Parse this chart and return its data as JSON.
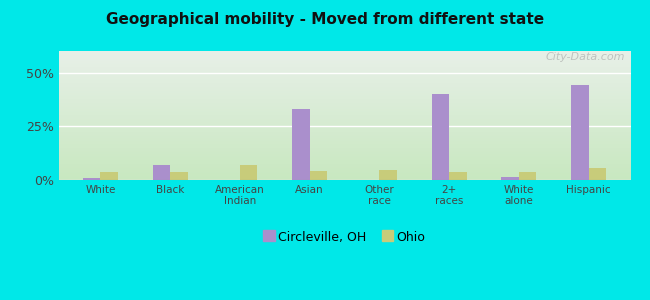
{
  "title": "Geographical mobility - Moved from different state",
  "categories": [
    "White",
    "Black",
    "American\nIndian",
    "Asian",
    "Other\nrace",
    "2+\nraces",
    "White\nalone",
    "Hispanic"
  ],
  "circleville_values": [
    1.0,
    7.0,
    0.0,
    33.0,
    0.0,
    40.0,
    1.5,
    44.0
  ],
  "ohio_values": [
    3.5,
    3.5,
    7.0,
    4.0,
    4.5,
    3.5,
    3.5,
    5.5
  ],
  "circleville_color": "#aa8fcc",
  "ohio_color": "#c8cc7a",
  "background_outer": "#00e8e8",
  "background_inner_top": "#e8f0e8",
  "background_inner_bottom": "#c8e8c0",
  "grid_color": "#d8e8d0",
  "ylim": [
    0,
    60
  ],
  "yticks": [
    0,
    25,
    50
  ],
  "ytick_labels": [
    "0%",
    "25%",
    "50%"
  ],
  "bar_width": 0.25,
  "legend_circleville": "Circleville, OH",
  "legend_ohio": "Ohio",
  "watermark": "City-Data.com"
}
